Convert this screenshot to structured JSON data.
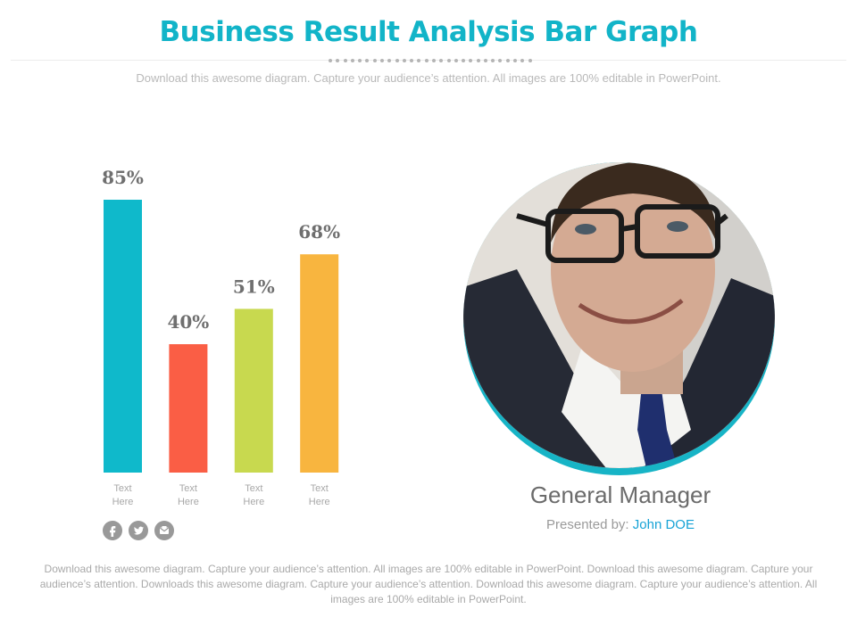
{
  "header": {
    "title": "Business Result Analysis Bar Graph",
    "subtitle": "Download this awesome diagram. Capture your audience’s attention. All images are 100% editable in PowerPoint."
  },
  "chart_data": {
    "type": "bar",
    "categories": [
      "Text\nHere",
      "Text\nHere",
      "Text\nHere",
      "Text\nHere"
    ],
    "values": [
      85,
      40,
      51,
      68
    ],
    "value_labels": [
      "85%",
      "40%",
      "51%",
      "68%"
    ],
    "colors": [
      "#0fb9cb",
      "#fa5e45",
      "#c8d94f",
      "#f8b53f"
    ],
    "title": "",
    "xlabel": "",
    "ylabel": "",
    "ylim": [
      0,
      100
    ],
    "grid": false
  },
  "social_icons": [
    "facebook-icon",
    "twitter-icon",
    "mail-icon"
  ],
  "profile": {
    "role": "General Manager",
    "presented_by_label": "Presented by:",
    "presenter_name": "John DOE",
    "ring_color": "#17b4c6"
  },
  "footer": {
    "text": "Download this awesome diagram. Capture your audience’s attention. All images are 100% editable in PowerPoint. Download this awesome diagram. Capture your audience’s attention. Downloads this awesome diagram. Capture your audience’s attention. Download this awesome diagram. Capture your audience’s attention.  All images are 100% editable in PowerPoint."
  }
}
